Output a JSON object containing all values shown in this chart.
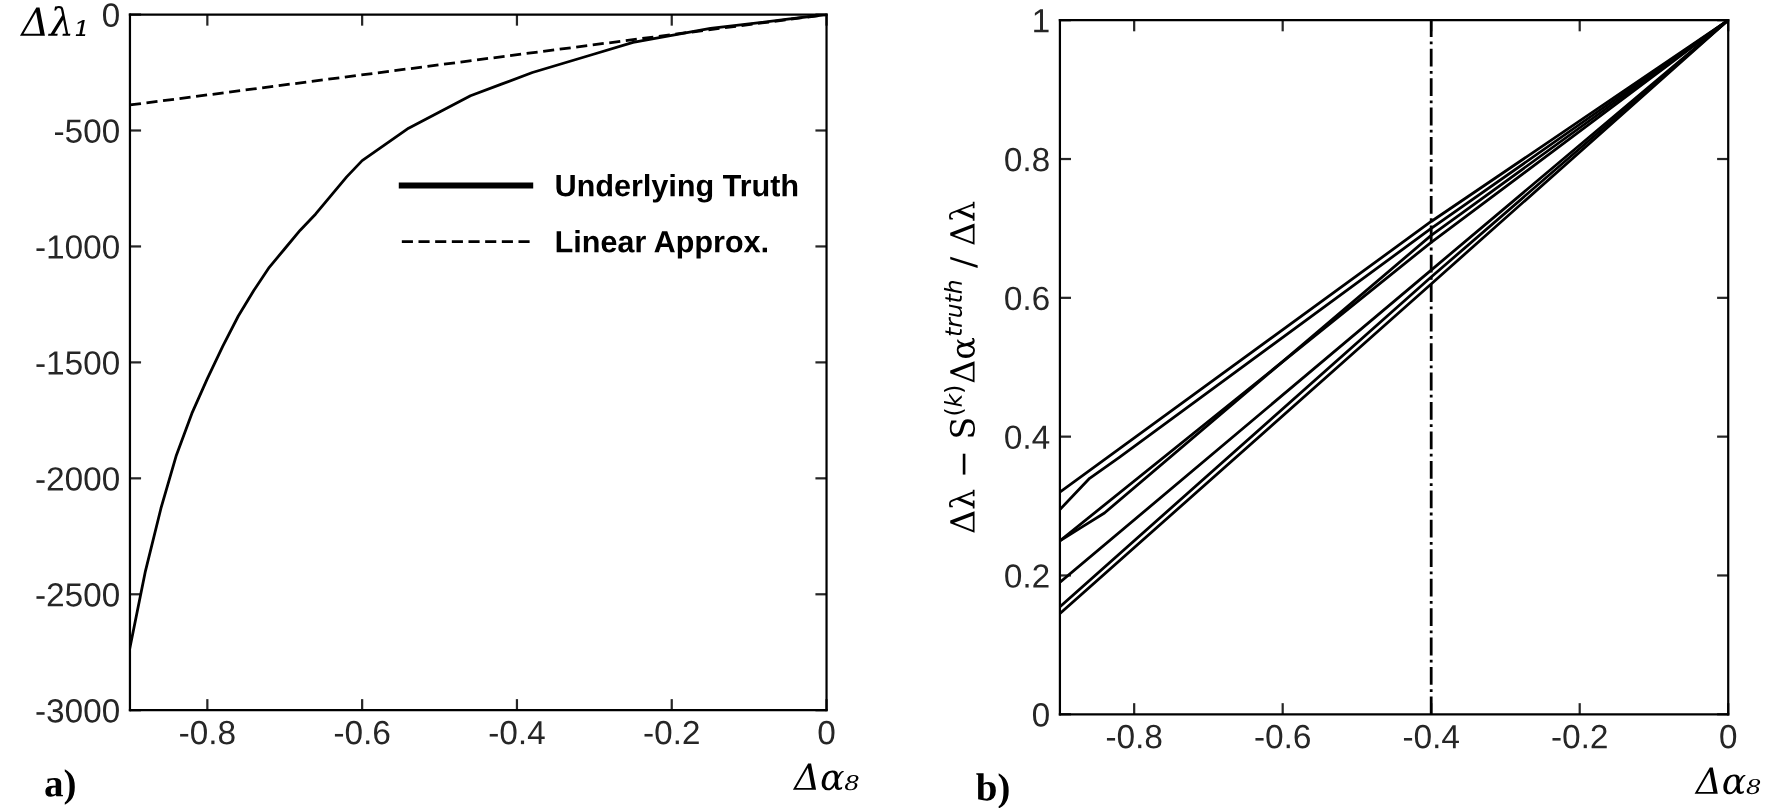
{
  "chart_data": [
    {
      "type": "line",
      "xlabel": "Δα₈",
      "ylabel": "Δλ₁",
      "annotations": [
        "a)"
      ],
      "xlim": [
        -0.9,
        0
      ],
      "ylim": [
        -3000,
        0
      ],
      "xticks": [
        -0.8,
        -0.6,
        -0.4,
        -0.2,
        0
      ],
      "yticks": [
        -3000,
        -2500,
        -2000,
        -1500,
        -1000,
        -500,
        0
      ],
      "legend": "right",
      "grid": false,
      "series": [
        {
          "name": "Underlying Truth",
          "color": "#000000",
          "line_style": "solid",
          "x": [
            -0.9,
            -0.88,
            -0.86,
            -0.84,
            -0.82,
            -0.8,
            -0.78,
            -0.76,
            -0.74,
            -0.72,
            -0.7,
            -0.68,
            -0.66,
            -0.64,
            -0.62,
            -0.6,
            -0.57,
            -0.54,
            -0.5,
            -0.46,
            -0.42,
            -0.38,
            -0.34,
            -0.3,
            -0.25,
            -0.2,
            -0.15,
            -0.1,
            -0.05,
            0
          ],
          "values": [
            -2730,
            -2400,
            -2130,
            -1900,
            -1720,
            -1570,
            -1430,
            -1300,
            -1190,
            -1090,
            -1010,
            -930,
            -860,
            -780,
            -700,
            -630,
            -560,
            -490,
            -420,
            -350,
            -300,
            -250,
            -210,
            -170,
            -120,
            -90,
            -60,
            -40,
            -20,
            0
          ]
        },
        {
          "name": "Linear Approx.",
          "color": "#000000",
          "line_style": "dashed",
          "x": [
            -0.9,
            0
          ],
          "values": [
            -390,
            0
          ]
        }
      ]
    },
    {
      "type": "line",
      "xlabel": "Δα₈",
      "ylabel": "Δλ − S$^{(k)}$Δα$^{truth}$ / Δλ",
      "annotations": [
        "b)"
      ],
      "xlim": [
        -0.9,
        0
      ],
      "ylim": [
        0,
        1
      ],
      "xticks": [
        -0.8,
        -0.6,
        -0.4,
        -0.2,
        0
      ],
      "yticks": [
        0,
        0.2,
        0.4,
        0.6,
        0.8,
        1
      ],
      "grid": false,
      "legend": false,
      "ref_lines": [
        {
          "axis": "x",
          "value": -0.4,
          "color": "#000000",
          "line_style": "dashdot"
        }
      ],
      "series": [
        {
          "color": "#000000",
          "x": [
            -0.9,
            -0.4,
            0
          ],
          "values": [
            0.32,
            0.71,
            1
          ]
        },
        {
          "color": "#000000",
          "x": [
            -0.9,
            -0.86,
            -0.82,
            -0.4,
            0
          ],
          "values": [
            0.295,
            0.34,
            0.37,
            0.7,
            1
          ]
        },
        {
          "color": "#000000",
          "x": [
            -0.9,
            -0.4,
            0
          ],
          "values": [
            0.25,
            0.68,
            1
          ]
        },
        {
          "color": "#000000",
          "x": [
            -0.9,
            -0.87,
            -0.84,
            -0.4,
            0
          ],
          "values": [
            0.25,
            0.27,
            0.29,
            0.69,
            1
          ]
        },
        {
          "color": "#000000",
          "x": [
            -0.9,
            -0.4,
            0
          ],
          "values": [
            0.19,
            0.64,
            1
          ]
        },
        {
          "color": "#000000",
          "x": [
            -0.9,
            -0.4,
            0
          ],
          "values": [
            0.155,
            0.63,
            1
          ]
        },
        {
          "color": "#000000",
          "x": [
            -0.9,
            -0.4,
            0
          ],
          "values": [
            0.145,
            0.62,
            1
          ]
        }
      ]
    }
  ]
}
